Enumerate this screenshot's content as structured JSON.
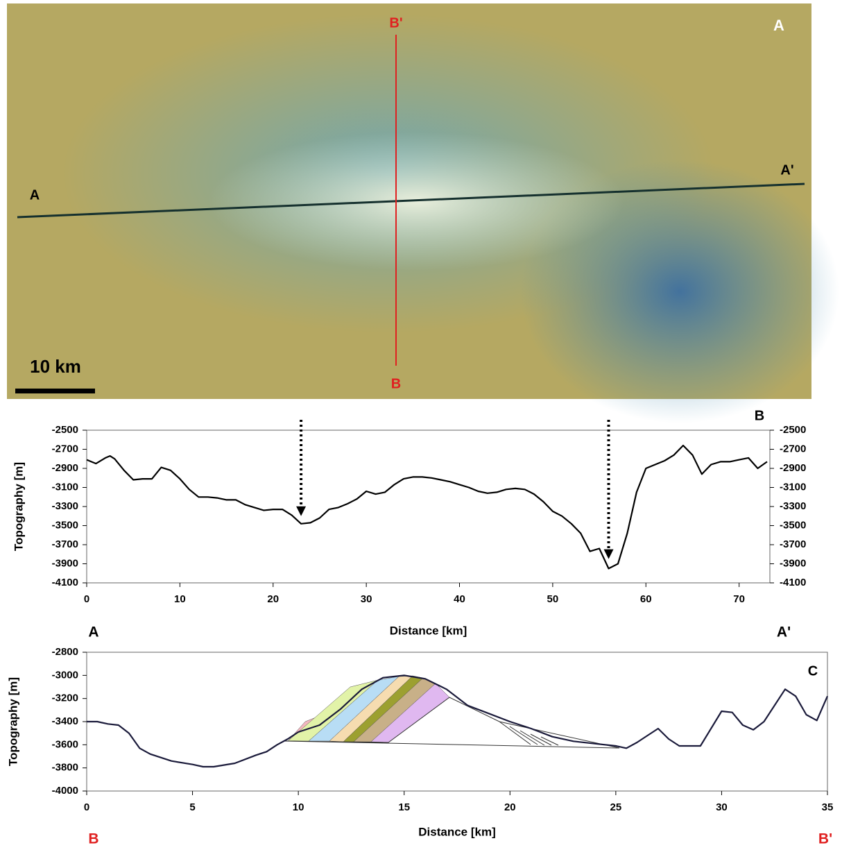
{
  "map": {
    "panel_label": "A",
    "section_b_top": "B'",
    "section_a_left": "A",
    "section_a_right": "A'",
    "section_b_bottom": "B",
    "scale_label": "10 km"
  },
  "chart_data": [
    {
      "type": "line",
      "panel_label": "B",
      "ylabel": "Topography [m]",
      "xlabel": "Distance [km]",
      "end_labels": [
        "A",
        "A'"
      ],
      "x": [
        0,
        1,
        2,
        2.5,
        3,
        4,
        5,
        6,
        7,
        8,
        9,
        10,
        11,
        12,
        13,
        14,
        15,
        16,
        17,
        18,
        19,
        20,
        21,
        22,
        23,
        24,
        25,
        26,
        27,
        28,
        29,
        30,
        31,
        32,
        33,
        34,
        35,
        36,
        37,
        38,
        39,
        40,
        41,
        42,
        43,
        44,
        45,
        46,
        47,
        48,
        49,
        50,
        51,
        52,
        53,
        54,
        55,
        56,
        57,
        58,
        59,
        60,
        61,
        62,
        63,
        64,
        65,
        66,
        67,
        68,
        69,
        70,
        71,
        72,
        73
      ],
      "series": [
        {
          "color": "#000000",
          "values": [
            -2810,
            -2850,
            -2790,
            -2770,
            -2800,
            -2920,
            -3020,
            -3010,
            -3010,
            -2890,
            -2920,
            -3010,
            -3120,
            -3200,
            -3200,
            -3210,
            -3230,
            -3230,
            -3280,
            -3310,
            -3340,
            -3330,
            -3330,
            -3390,
            -3480,
            -3470,
            -3420,
            -3330,
            -3310,
            -3270,
            -3220,
            -3140,
            -3170,
            -3150,
            -3070,
            -3010,
            -2990,
            -2990,
            -3000,
            -3020,
            -3040,
            -3070,
            -3100,
            -3140,
            -3160,
            -3150,
            -3120,
            -3110,
            -3120,
            -3170,
            -3250,
            -3350,
            -3400,
            -3480,
            -3580,
            -3770,
            -3740,
            -3950,
            -3900,
            -3580,
            -3150,
            -2900,
            -2860,
            -2820,
            -2760,
            -2660,
            -2760,
            -2960,
            -2860,
            -2830,
            -2830,
            -2810,
            -2790,
            -2900,
            -2830
          ]
        }
      ],
      "arrows": [
        {
          "x": 23,
          "y": -3400
        },
        {
          "x": 56,
          "y": -3850
        }
      ],
      "xlim": [
        0,
        73.3
      ],
      "xticks": [
        0,
        10,
        20,
        30,
        40,
        50,
        60,
        70
      ],
      "ylim": [
        -4100,
        -2500
      ],
      "yticks": [
        -2500,
        -2700,
        -2900,
        -3100,
        -3300,
        -3500,
        -3700,
        -3900,
        -4100
      ],
      "right_axis": true
    },
    {
      "type": "line",
      "panel_label": "C",
      "ylabel": "Topography [m]",
      "xlabel": "Distance [km]",
      "end_labels": [
        "B",
        "B'"
      ],
      "x": [
        0,
        0.5,
        1,
        1.5,
        2,
        2.5,
        3,
        4,
        5,
        5.5,
        6,
        7,
        8,
        8.5,
        9,
        9.5,
        10,
        10.5,
        11,
        12,
        13,
        14,
        15,
        16,
        17,
        18,
        19,
        20,
        21,
        22,
        23,
        24,
        25,
        25.5,
        26,
        26.5,
        27,
        27.5,
        28,
        29,
        30,
        30.5,
        31,
        31.5,
        32,
        33,
        33.5,
        34,
        34.5,
        35
      ],
      "series": [
        {
          "color": "#1a1a3a",
          "values": [
            -3400,
            -3400,
            -3420,
            -3430,
            -3500,
            -3630,
            -3680,
            -3740,
            -3770,
            -3790,
            -3790,
            -3760,
            -3690,
            -3660,
            -3600,
            -3550,
            -3490,
            -3460,
            -3430,
            -3290,
            -3120,
            -3020,
            -3000,
            -3030,
            -3120,
            -3260,
            -3330,
            -3400,
            -3460,
            -3530,
            -3570,
            -3590,
            -3610,
            -3630,
            -3580,
            -3520,
            -3460,
            -3550,
            -3610,
            -3610,
            -3310,
            -3320,
            -3430,
            -3470,
            -3400,
            -3120,
            -3180,
            -3340,
            -3390,
            -3180
          ]
        }
      ],
      "xlim": [
        0,
        35
      ],
      "xticks": [
        0,
        5,
        10,
        15,
        20,
        25,
        30,
        35
      ],
      "ylim": [
        -4000,
        -2800
      ],
      "yticks": [
        -2800,
        -3000,
        -3200,
        -3400,
        -3600,
        -3800,
        -4000
      ],
      "right_axis": false
    }
  ]
}
